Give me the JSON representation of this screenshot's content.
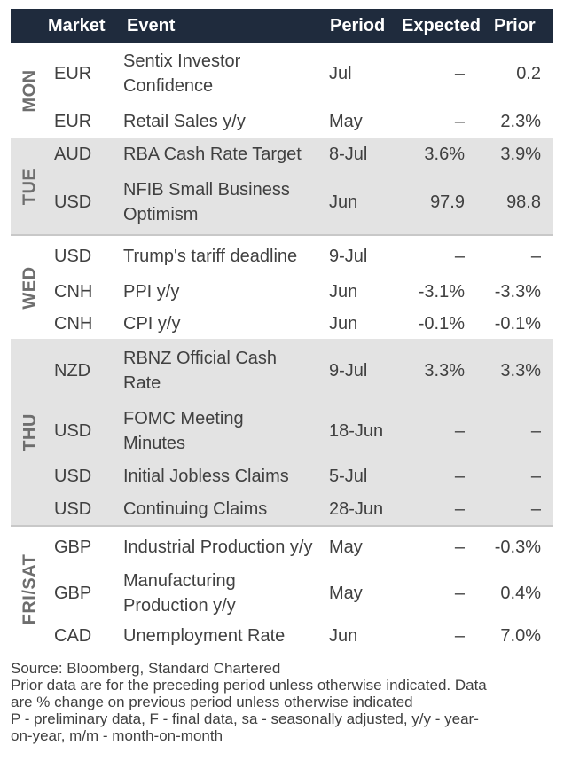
{
  "headers": {
    "market": "Market",
    "event": "Event",
    "period": "Period",
    "expected": "Expected",
    "prior": "Prior"
  },
  "days": [
    {
      "label": "MON",
      "rows": [
        {
          "market": "EUR",
          "event_lines": [
            "Sentix Investor",
            "Confidence"
          ],
          "period": "Jul",
          "expected": "–",
          "prior": "0.2"
        },
        {
          "market": "EUR",
          "event_lines": [
            "Retail Sales y/y"
          ],
          "period": "May",
          "expected": "–",
          "prior": "2.3%"
        }
      ]
    },
    {
      "label": "TUE",
      "rows": [
        {
          "market": "AUD",
          "event_lines": [
            "RBA Cash Rate Target"
          ],
          "period": "8-Jul",
          "expected": "3.6%",
          "prior": "3.9%"
        },
        {
          "market": "USD",
          "event_lines": [
            "NFIB Small Business",
            "Optimism"
          ],
          "period": "Jun",
          "expected": "97.9",
          "prior": "98.8"
        }
      ]
    },
    {
      "label": "WED",
      "rows": [
        {
          "market": "USD",
          "event_lines": [
            "Trump's tariff deadline"
          ],
          "period": "9-Jul",
          "expected": "–",
          "prior": "–"
        },
        {
          "market": "CNH",
          "event_lines": [
            "PPI y/y"
          ],
          "period": "Jun",
          "expected": "-3.1%",
          "prior": "-3.3%"
        },
        {
          "market": "CNH",
          "event_lines": [
            "CPI y/y"
          ],
          "period": "Jun",
          "expected": "-0.1%",
          "prior": "-0.1%"
        }
      ]
    },
    {
      "label": "THU",
      "rows": [
        {
          "market": "NZD",
          "event_lines": [
            "RBNZ Official Cash",
            "Rate"
          ],
          "period": "9-Jul",
          "expected": "3.3%",
          "prior": "3.3%"
        },
        {
          "market": "USD",
          "event_lines": [
            "FOMC Meeting",
            "Minutes"
          ],
          "period": "18-Jun",
          "expected": "–",
          "prior": "–"
        },
        {
          "market": "USD",
          "event_lines": [
            "Initial Jobless Claims"
          ],
          "period": "5-Jul",
          "expected": "–",
          "prior": "–"
        },
        {
          "market": "USD",
          "event_lines": [
            "Continuing Claims"
          ],
          "period": "28-Jun",
          "expected": "–",
          "prior": "–"
        }
      ]
    },
    {
      "label": "FRI/SAT",
      "rows": [
        {
          "market": "GBP",
          "event_lines": [
            "Industrial Production y/y"
          ],
          "period": "May",
          "expected": "–",
          "prior": "-0.3%"
        },
        {
          "market": "GBP",
          "event_lines": [
            "Manufacturing",
            "Production y/y"
          ],
          "period": "May",
          "expected": "–",
          "prior": "0.4%"
        },
        {
          "market": "CAD",
          "event_lines": [
            "Unemployment Rate"
          ],
          "period": "Jun",
          "expected": "–",
          "prior": "7.0%"
        }
      ]
    }
  ],
  "footer": {
    "source": "Source: Bloomberg, Standard Chartered",
    "note_lines": [
      "Prior data are for the preceding period unless otherwise indicated. Data",
      "are % change on previous period unless otherwise indicated",
      "P - preliminary data, F - final data, sa - seasonally adjusted, y/y - year-",
      "on-year, m/m - month-on-month"
    ]
  },
  "colors": {
    "header_bg": "#1f2b3d",
    "shaded_bg": "#e3e3e3",
    "text": "#404040",
    "day_label": "#6e6e6e"
  }
}
